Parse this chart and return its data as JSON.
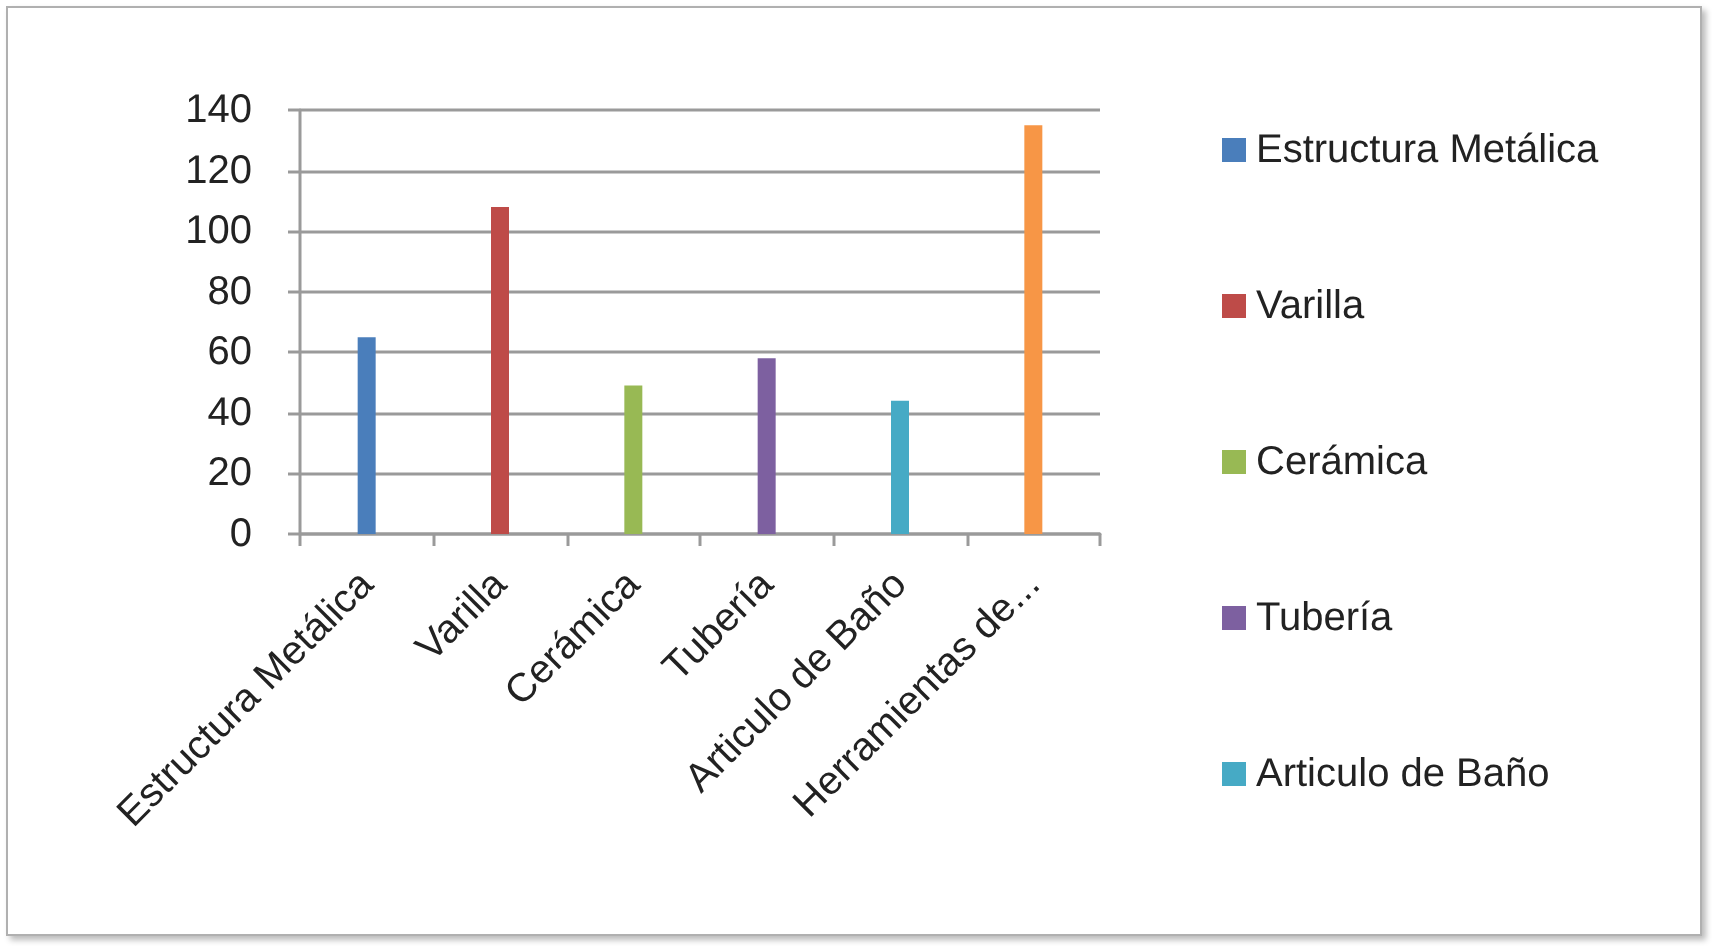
{
  "chart_data": {
    "type": "bar",
    "categories": [
      "Estructura Metálica",
      "Varilla",
      "Cerámica",
      "Tubería",
      "Articulo de Baño",
      "Herramientas de..."
    ],
    "series": [
      {
        "name": "Estructura Metálica",
        "color": "#4a7ebb",
        "values": [
          65,
          null,
          null,
          null,
          null,
          null
        ]
      },
      {
        "name": "Varilla",
        "color": "#be4b48",
        "values": [
          null,
          108,
          null,
          null,
          null,
          null
        ]
      },
      {
        "name": "Cerámica",
        "color": "#98b954",
        "values": [
          null,
          null,
          49,
          null,
          null,
          null
        ]
      },
      {
        "name": "Tubería",
        "color": "#7d60a0",
        "values": [
          null,
          null,
          null,
          58,
          null,
          null
        ]
      },
      {
        "name": "Articulo de Baño",
        "color": "#46aac5",
        "values": [
          null,
          null,
          null,
          null,
          44,
          null
        ]
      },
      {
        "color": "#f79646",
        "values": [
          null,
          null,
          null,
          null,
          null,
          135
        ]
      }
    ],
    "ylim": [
      0,
      140
    ],
    "yticks": [
      0,
      20,
      40,
      60,
      80,
      100,
      120,
      140
    ],
    "grid": "y",
    "legend": "right"
  }
}
